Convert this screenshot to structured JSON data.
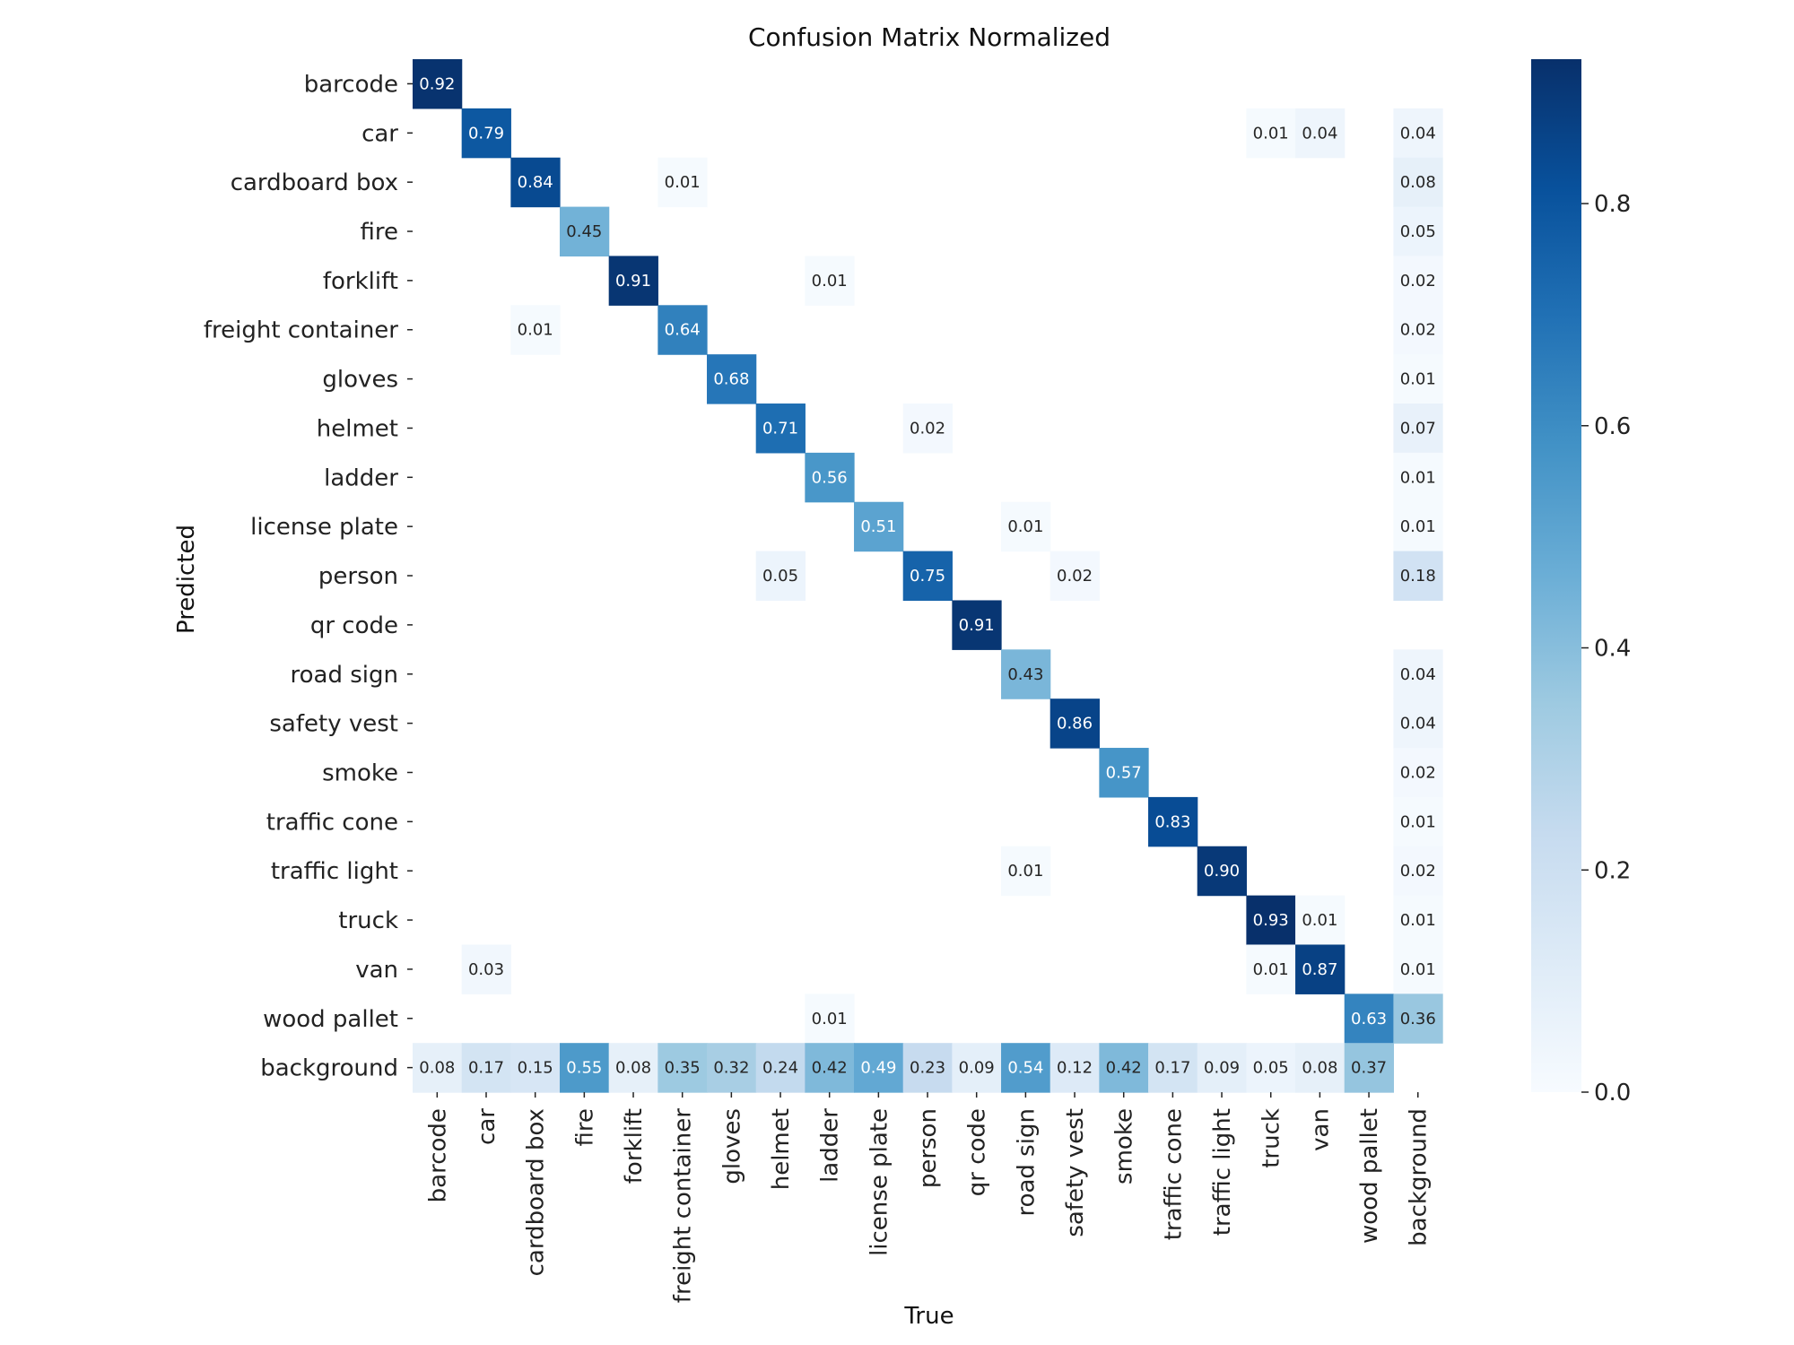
{
  "chart_data": {
    "type": "heatmap",
    "title": "Confusion Matrix Normalized",
    "xlabel": "True",
    "ylabel": "Predicted",
    "categories": [
      "barcode",
      "car",
      "cardboard box",
      "fire",
      "forklift",
      "freight container",
      "gloves",
      "helmet",
      "ladder",
      "license plate",
      "person",
      "qr code",
      "road sign",
      "safety vest",
      "smoke",
      "traffic cone",
      "traffic light",
      "truck",
      "van",
      "wood pallet",
      "background"
    ],
    "values": [
      [
        0.92,
        null,
        null,
        null,
        null,
        null,
        null,
        null,
        null,
        null,
        null,
        null,
        null,
        null,
        null,
        null,
        null,
        null,
        null,
        null,
        null
      ],
      [
        null,
        0.79,
        null,
        null,
        null,
        null,
        null,
        null,
        null,
        null,
        null,
        null,
        null,
        null,
        null,
        null,
        null,
        0.01,
        0.04,
        null,
        0.04
      ],
      [
        null,
        null,
        0.84,
        null,
        null,
        0.01,
        null,
        null,
        null,
        null,
        null,
        null,
        null,
        null,
        null,
        null,
        null,
        null,
        null,
        null,
        0.08
      ],
      [
        null,
        null,
        null,
        0.45,
        null,
        null,
        null,
        null,
        null,
        null,
        null,
        null,
        null,
        null,
        null,
        null,
        null,
        null,
        null,
        null,
        0.05
      ],
      [
        null,
        null,
        null,
        null,
        0.91,
        null,
        null,
        null,
        0.01,
        null,
        null,
        null,
        null,
        null,
        null,
        null,
        null,
        null,
        null,
        null,
        0.02
      ],
      [
        null,
        null,
        0.01,
        null,
        null,
        0.64,
        null,
        null,
        null,
        null,
        null,
        null,
        null,
        null,
        null,
        null,
        null,
        null,
        null,
        null,
        0.02
      ],
      [
        null,
        null,
        null,
        null,
        null,
        null,
        0.68,
        null,
        null,
        null,
        null,
        null,
        null,
        null,
        null,
        null,
        null,
        null,
        null,
        null,
        0.01
      ],
      [
        null,
        null,
        null,
        null,
        null,
        null,
        null,
        0.71,
        null,
        null,
        0.02,
        null,
        null,
        null,
        null,
        null,
        null,
        null,
        null,
        null,
        0.07
      ],
      [
        null,
        null,
        null,
        null,
        null,
        null,
        null,
        null,
        0.56,
        null,
        null,
        null,
        null,
        null,
        null,
        null,
        null,
        null,
        null,
        null,
        0.01
      ],
      [
        null,
        null,
        null,
        null,
        null,
        null,
        null,
        null,
        null,
        0.51,
        null,
        null,
        0.01,
        null,
        null,
        null,
        null,
        null,
        null,
        null,
        0.01
      ],
      [
        null,
        null,
        null,
        null,
        null,
        null,
        null,
        0.05,
        null,
        null,
        0.75,
        null,
        null,
        0.02,
        null,
        null,
        null,
        null,
        null,
        null,
        0.18
      ],
      [
        null,
        null,
        null,
        null,
        null,
        null,
        null,
        null,
        null,
        null,
        null,
        0.91,
        null,
        null,
        null,
        null,
        null,
        null,
        null,
        null,
        null
      ],
      [
        null,
        null,
        null,
        null,
        null,
        null,
        null,
        null,
        null,
        null,
        null,
        null,
        0.43,
        null,
        null,
        null,
        null,
        null,
        null,
        null,
        0.04
      ],
      [
        null,
        null,
        null,
        null,
        null,
        null,
        null,
        null,
        null,
        null,
        null,
        null,
        null,
        0.86,
        null,
        null,
        null,
        null,
        null,
        null,
        0.04
      ],
      [
        null,
        null,
        null,
        null,
        null,
        null,
        null,
        null,
        null,
        null,
        null,
        null,
        null,
        null,
        0.57,
        null,
        null,
        null,
        null,
        null,
        0.02
      ],
      [
        null,
        null,
        null,
        null,
        null,
        null,
        null,
        null,
        null,
        null,
        null,
        null,
        null,
        null,
        null,
        0.83,
        null,
        null,
        null,
        null,
        0.01
      ],
      [
        null,
        null,
        null,
        null,
        null,
        null,
        null,
        null,
        null,
        null,
        null,
        null,
        0.01,
        null,
        null,
        null,
        0.9,
        null,
        null,
        null,
        0.02
      ],
      [
        null,
        null,
        null,
        null,
        null,
        null,
        null,
        null,
        null,
        null,
        null,
        null,
        null,
        null,
        null,
        null,
        null,
        0.93,
        0.01,
        null,
        0.01
      ],
      [
        null,
        0.03,
        null,
        null,
        null,
        null,
        null,
        null,
        null,
        null,
        null,
        null,
        null,
        null,
        null,
        null,
        null,
        0.01,
        0.87,
        null,
        0.01
      ],
      [
        null,
        null,
        null,
        null,
        null,
        null,
        null,
        null,
        0.01,
        null,
        null,
        null,
        null,
        null,
        null,
        null,
        null,
        null,
        null,
        0.63,
        0.36
      ],
      [
        0.08,
        0.17,
        0.15,
        0.55,
        0.08,
        0.35,
        0.32,
        0.24,
        0.42,
        0.49,
        0.23,
        0.09,
        0.54,
        0.12,
        0.42,
        0.17,
        0.09,
        0.05,
        0.08,
        0.37,
        null
      ]
    ],
    "colorbar": {
      "range": [
        0.0,
        0.93
      ],
      "ticks": [
        0.0,
        0.2,
        0.4,
        0.6,
        0.8
      ],
      "tick_labels": [
        "0.0",
        "0.2",
        "0.4",
        "0.6",
        "0.8"
      ]
    },
    "colormap": "Blues"
  }
}
